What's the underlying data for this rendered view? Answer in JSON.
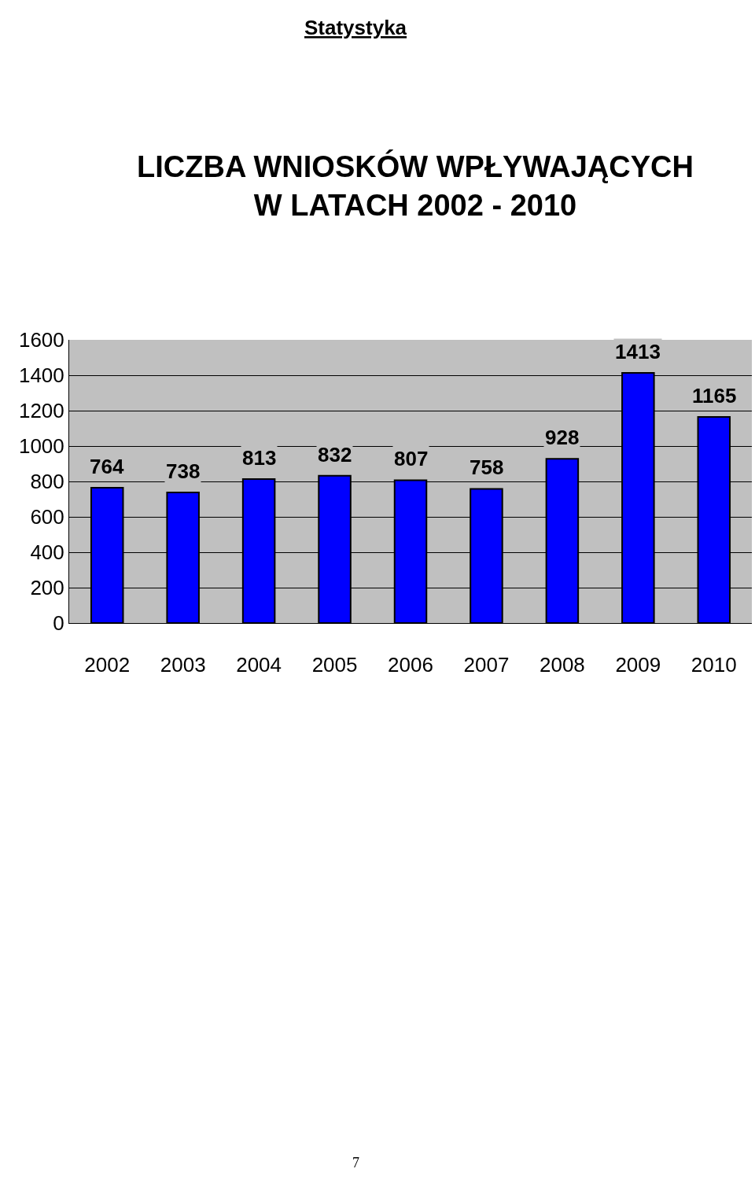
{
  "chart_data": {
    "type": "bar",
    "title": "LICZBA WNIOSKÓW WPŁYWAJĄCYCH\nW LATACH 2002 - 2010",
    "categories": [
      "2002",
      "2003",
      "2004",
      "2005",
      "2006",
      "2007",
      "2008",
      "2009",
      "2010"
    ],
    "values": [
      764,
      738,
      813,
      832,
      807,
      758,
      928,
      1413,
      1165
    ],
    "color": "#0000ff",
    "ylim": [
      0,
      1600
    ],
    "yticks": [
      0,
      200,
      400,
      600,
      800,
      1000,
      1200,
      1400,
      1600
    ],
    "grid": "y",
    "data_labels": true,
    "annotations": [
      "Statystyka",
      "7"
    ]
  }
}
